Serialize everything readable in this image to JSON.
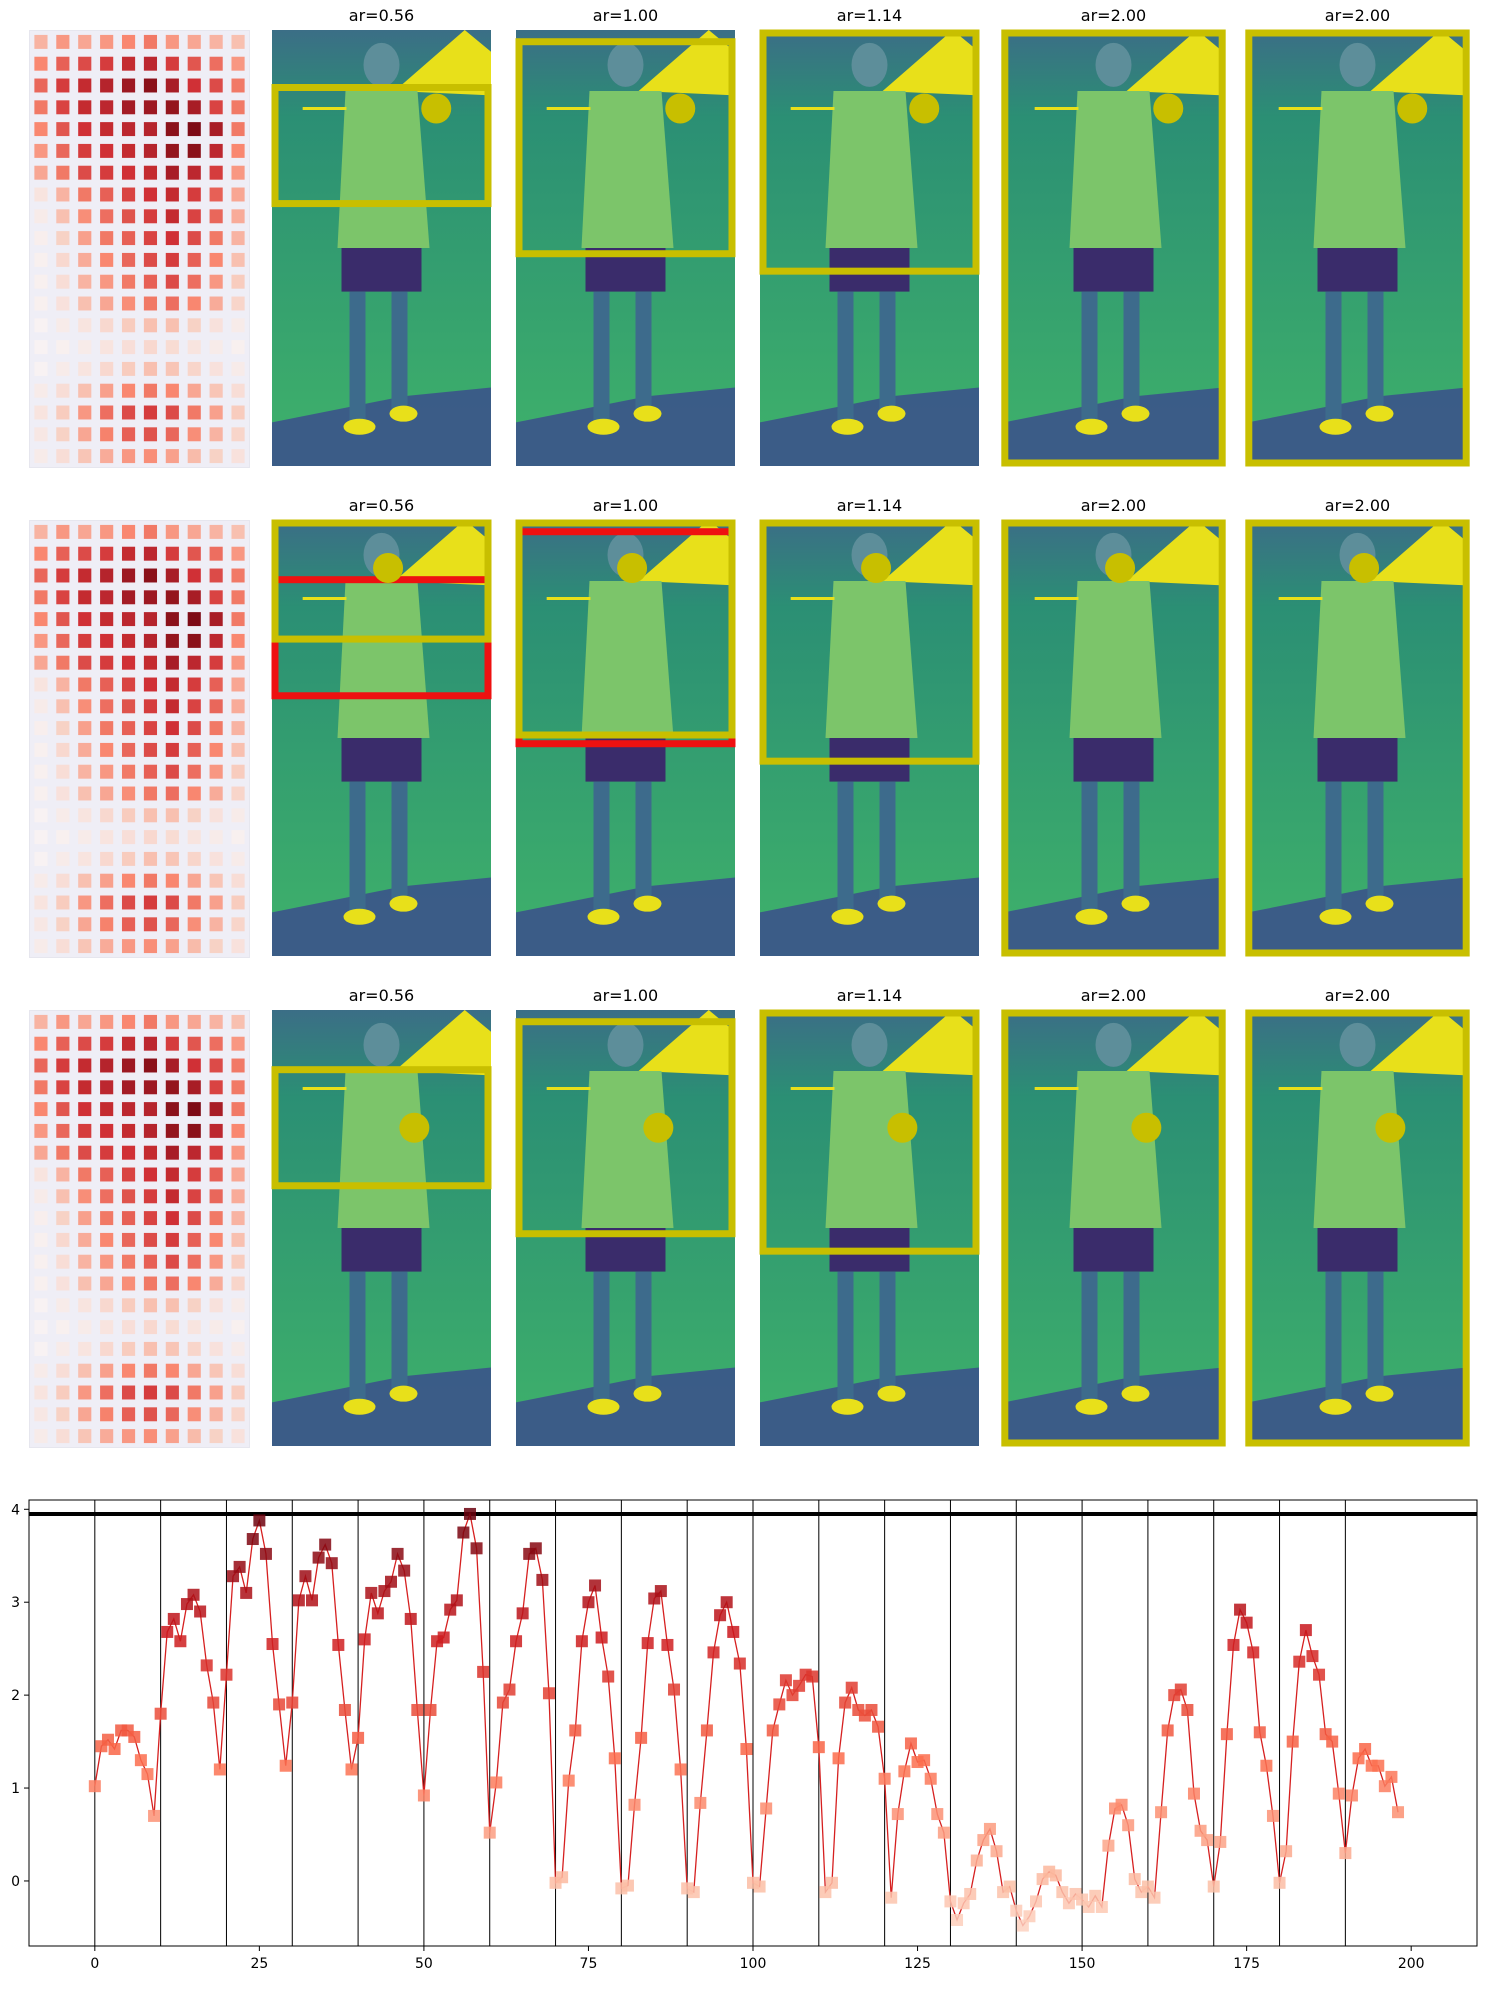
{
  "panel_titles": [
    "ar=0.56",
    "ar=1.00",
    "ar=1.14",
    "ar=2.00",
    "ar=2.00"
  ],
  "colors": {
    "box_yellow": "#c8bf00",
    "box_red": "#ee1111",
    "line_red": "#d62020",
    "photo_bg": "#2a9a6e"
  },
  "chart_data": {
    "type": "line",
    "title": "",
    "xlabel": "",
    "ylabel": "",
    "xlim": [
      -10,
      210
    ],
    "ylim": [
      -0.7,
      4.1
    ],
    "xticks": [
      0,
      25,
      50,
      75,
      100,
      125,
      150,
      175,
      200
    ],
    "yticks": [
      0,
      1,
      2,
      3,
      4
    ],
    "vlines": [
      0,
      10,
      20,
      30,
      40,
      50,
      60,
      70,
      80,
      90,
      100,
      110,
      120,
      130,
      140,
      150,
      160,
      170,
      180,
      190
    ],
    "hline": 3.95,
    "grid": false,
    "marker": "square",
    "series": [
      {
        "values": [
          1.02,
          1.45,
          1.52,
          1.42,
          1.62,
          1.62,
          1.55,
          1.3,
          1.15,
          0.7,
          1.8,
          2.68,
          2.82,
          2.58,
          2.98,
          3.08,
          2.9,
          2.32,
          1.92,
          1.2,
          2.22,
          3.28,
          3.38,
          3.1,
          3.68,
          3.88,
          3.52,
          2.55,
          1.9,
          1.24,
          1.92,
          3.02,
          3.28,
          3.02,
          3.48,
          3.62,
          3.42,
          2.54,
          1.84,
          1.2,
          1.54,
          2.6,
          3.1,
          2.88,
          3.12,
          3.22,
          3.52,
          3.34,
          2.82,
          1.84,
          0.92,
          1.84,
          2.58,
          2.62,
          2.92,
          3.02,
          3.75,
          3.95,
          3.58,
          2.25,
          0.52,
          1.06,
          1.92,
          2.06,
          2.58,
          2.88,
          3.52,
          3.58,
          3.24,
          2.02,
          -0.02,
          0.04,
          1.08,
          1.62,
          2.58,
          3.0,
          3.18,
          2.62,
          2.2,
          1.32,
          -0.08,
          -0.05,
          0.82,
          1.54,
          2.56,
          3.04,
          3.12,
          2.54,
          2.06,
          1.2,
          -0.08,
          -0.12,
          0.84,
          1.62,
          2.46,
          2.86,
          3.0,
          2.68,
          2.34,
          1.42,
          -0.02,
          -0.06,
          0.78,
          1.62,
          1.9,
          2.16,
          2.0,
          2.1,
          2.22,
          2.2,
          1.44,
          -0.12,
          -0.02,
          1.32,
          1.92,
          2.08,
          1.84,
          1.78,
          1.84,
          1.66,
          1.1,
          -0.18,
          0.72,
          1.18,
          1.48,
          1.28,
          1.3,
          1.1,
          0.72,
          0.52,
          -0.22,
          -0.42,
          -0.24,
          -0.14,
          0.22,
          0.44,
          0.56,
          0.32,
          -0.12,
          -0.06,
          -0.32,
          -0.48,
          -0.38,
          -0.22,
          0.02,
          0.1,
          0.06,
          -0.12,
          -0.24,
          -0.14,
          -0.2,
          -0.28,
          -0.16,
          -0.28,
          0.38,
          0.78,
          0.82,
          0.6,
          0.02,
          -0.12,
          -0.06,
          -0.18,
          0.74,
          1.62,
          2.0,
          2.06,
          1.84,
          0.94,
          0.54,
          0.44,
          -0.06,
          0.42,
          1.58,
          2.54,
          2.92,
          2.78,
          2.46,
          1.6,
          1.24,
          0.7,
          -0.02,
          0.32,
          1.5,
          2.36,
          2.7,
          2.42,
          2.22,
          1.58,
          1.5,
          0.94,
          0.3,
          0.92,
          1.32,
          1.42,
          1.24,
          1.24,
          1.02,
          1.12,
          0.74
        ]
      }
    ],
    "heatmap_values": [
      [
        0.35,
        0.45,
        0.4,
        0.45,
        0.5,
        0.55,
        0.45,
        0.4,
        0.35,
        0.3
      ],
      [
        0.5,
        0.62,
        0.68,
        0.72,
        0.78,
        0.8,
        0.72,
        0.65,
        0.58,
        0.45
      ],
      [
        0.6,
        0.72,
        0.78,
        0.82,
        0.88,
        0.92,
        0.85,
        0.75,
        0.68,
        0.55
      ],
      [
        0.55,
        0.7,
        0.78,
        0.8,
        0.86,
        0.88,
        0.9,
        0.85,
        0.7,
        0.55
      ],
      [
        0.5,
        0.65,
        0.75,
        0.78,
        0.8,
        0.82,
        0.92,
        0.95,
        0.85,
        0.55
      ],
      [
        0.45,
        0.6,
        0.72,
        0.75,
        0.78,
        0.82,
        0.9,
        0.92,
        0.8,
        0.5
      ],
      [
        0.4,
        0.55,
        0.68,
        0.72,
        0.75,
        0.78,
        0.85,
        0.8,
        0.72,
        0.45
      ],
      [
        0.1,
        0.35,
        0.55,
        0.62,
        0.7,
        0.75,
        0.78,
        0.72,
        0.62,
        0.4
      ],
      [
        0.05,
        0.3,
        0.48,
        0.58,
        0.66,
        0.72,
        0.78,
        0.7,
        0.6,
        0.38
      ],
      [
        0.03,
        0.22,
        0.42,
        0.55,
        0.62,
        0.7,
        0.75,
        0.68,
        0.55,
        0.35
      ],
      [
        0.02,
        0.18,
        0.38,
        0.5,
        0.6,
        0.68,
        0.72,
        0.62,
        0.5,
        0.3
      ],
      [
        0.02,
        0.15,
        0.35,
        0.45,
        0.55,
        0.62,
        0.68,
        0.58,
        0.45,
        0.25
      ],
      [
        0.02,
        0.12,
        0.3,
        0.4,
        0.48,
        0.55,
        0.58,
        0.5,
        0.38,
        0.2
      ],
      [
        0.0,
        0.05,
        0.1,
        0.18,
        0.25,
        0.3,
        0.3,
        0.22,
        0.12,
        0.05
      ],
      [
        0.0,
        0.02,
        0.05,
        0.1,
        0.14,
        0.18,
        0.16,
        0.1,
        0.05,
        0.02
      ],
      [
        0.0,
        0.05,
        0.1,
        0.18,
        0.25,
        0.3,
        0.28,
        0.2,
        0.12,
        0.05
      ],
      [
        0.05,
        0.15,
        0.3,
        0.42,
        0.5,
        0.55,
        0.5,
        0.4,
        0.28,
        0.15
      ],
      [
        0.1,
        0.25,
        0.45,
        0.58,
        0.68,
        0.72,
        0.68,
        0.55,
        0.42,
        0.25
      ],
      [
        0.08,
        0.22,
        0.4,
        0.52,
        0.62,
        0.66,
        0.6,
        0.48,
        0.35,
        0.2
      ],
      [
        0.05,
        0.15,
        0.28,
        0.38,
        0.45,
        0.48,
        0.42,
        0.32,
        0.22,
        0.12
      ]
    ]
  }
}
